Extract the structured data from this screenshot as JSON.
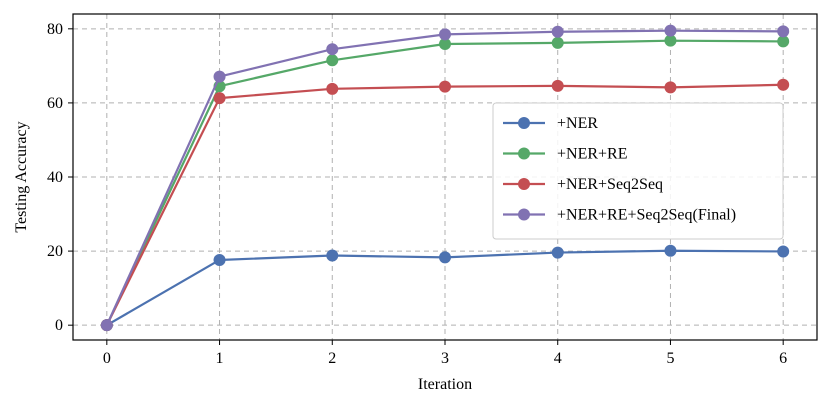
{
  "chart_data": {
    "type": "line",
    "title": "",
    "xlabel": "Iteration",
    "ylabel": "Testing Accuracy",
    "x": [
      0,
      1,
      2,
      3,
      4,
      5,
      6
    ],
    "xlim": [
      -0.3,
      6.3
    ],
    "ylim": [
      -4,
      84
    ],
    "xticks": [
      0,
      1,
      2,
      3,
      4,
      5,
      6
    ],
    "yticks": [
      0,
      20,
      40,
      60,
      80
    ],
    "grid": true,
    "legend_position": "center-right",
    "series": [
      {
        "name": "+NER",
        "color": "#4c72b0",
        "values": [
          0,
          17.6,
          18.8,
          18.3,
          19.6,
          20.1,
          19.9
        ]
      },
      {
        "name": "+NER+RE",
        "color": "#55a868",
        "values": [
          0,
          64.5,
          71.5,
          75.9,
          76.2,
          76.8,
          76.6
        ]
      },
      {
        "name": "+NER+Seq2Seq",
        "color": "#c44e52",
        "values": [
          0,
          61.3,
          63.8,
          64.4,
          64.6,
          64.2,
          64.9
        ]
      },
      {
        "name": "+NER+RE+Seq2Seq(Final)",
        "color": "#8172b2",
        "values": [
          0,
          67.1,
          74.5,
          78.5,
          79.2,
          79.5,
          79.3
        ]
      }
    ]
  }
}
